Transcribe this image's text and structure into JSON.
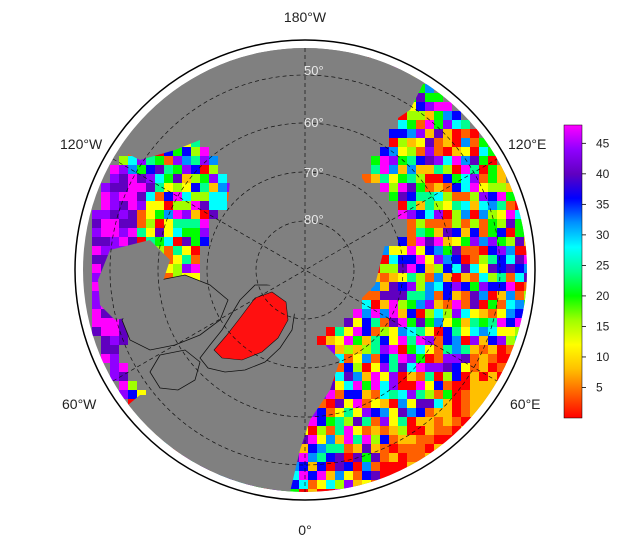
{
  "map": {
    "projection": "north-polar-stereographic",
    "longitude_labels": {
      "top": "180°W",
      "bottom": "0°",
      "upper_left": "120°W",
      "upper_right": "120°E",
      "lower_left": "60°W",
      "lower_right": "60°E"
    },
    "latitude_labels": [
      "50°",
      "60°",
      "70°",
      "80°"
    ],
    "background_color": "#808080",
    "frame_color": "#000000"
  },
  "colorbar": {
    "ticks": [
      "45",
      "40",
      "35",
      "30",
      "25",
      "20",
      "15",
      "10",
      "5"
    ],
    "tick_values": [
      45,
      40,
      35,
      30,
      25,
      20,
      15,
      10,
      5
    ],
    "range": [
      0,
      48
    ],
    "colors": [
      "#ff0000",
      "#ff6000",
      "#ffc000",
      "#ffff00",
      "#a0ff00",
      "#00ff00",
      "#00ff90",
      "#00ffff",
      "#0090ff",
      "#0000ff",
      "#6000c0",
      "#9000ff",
      "#ff00ff"
    ]
  }
}
